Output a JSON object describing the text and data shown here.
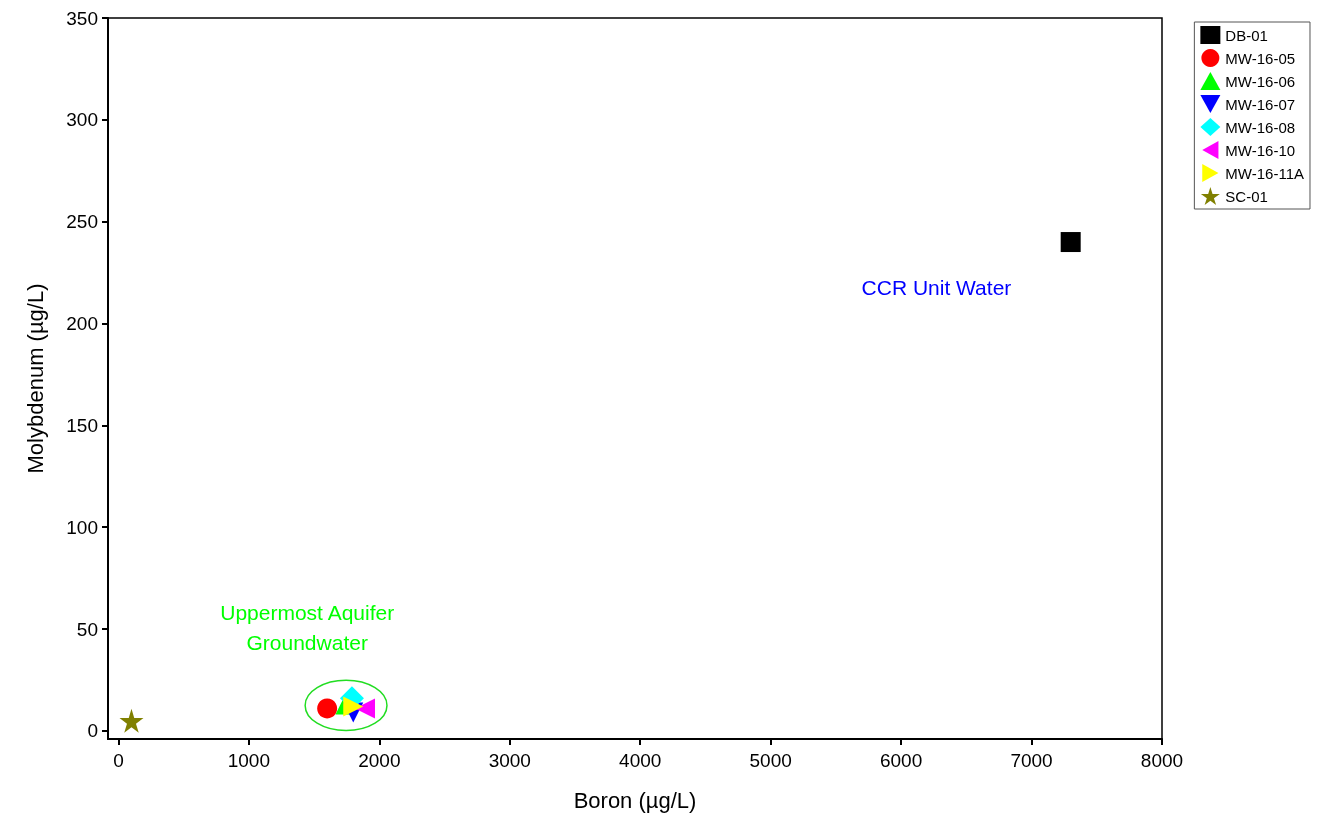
{
  "chart_data": {
    "type": "scatter",
    "xlabel": "Boron (µg/L)",
    "ylabel": "Molybdenum (µg/L)",
    "xlim": [
      -80,
      8000
    ],
    "xticks": [
      0,
      1000,
      2000,
      3000,
      4000,
      5000,
      6000,
      7000,
      8000
    ],
    "ylim": [
      -4,
      350
    ],
    "yticks": [
      0,
      50,
      100,
      150,
      200,
      250,
      300,
      350
    ],
    "grid": false,
    "legend": "top right",
    "annotations": [
      "CCR Unit Water",
      "Uppermost Aquifer\nGroundwater"
    ],
    "series": [
      {
        "name": "DB-01",
        "color": "#000000",
        "marker": "square",
        "x": [
          7300
        ],
        "values": [
          240
        ]
      },
      {
        "name": "MW-16-05",
        "color": "#ff0000",
        "marker": "circle",
        "x": [
          1600
        ],
        "values": [
          11
        ]
      },
      {
        "name": "MW-16-06",
        "color": "#00ff00",
        "marker": "triangle",
        "x": [
          1740
        ],
        "values": [
          13
        ]
      },
      {
        "name": "MW-16-07",
        "color": "#0000ff",
        "marker": "triangle-down",
        "x": [
          1800
        ],
        "values": [
          9
        ]
      },
      {
        "name": "MW-16-08",
        "color": "#00ffff",
        "marker": "diamond",
        "x": [
          1790
        ],
        "values": [
          16
        ]
      },
      {
        "name": "MW-16-10",
        "color": "#ff00ff",
        "marker": "triangle-left",
        "x": [
          1890
        ],
        "values": [
          11
        ]
      },
      {
        "name": "MW-16-11A",
        "color": "#ffff00",
        "marker": "triangle-right",
        "x": [
          1800
        ],
        "values": [
          12
        ]
      },
      {
        "name": "SC-01",
        "color": "#808000",
        "marker": "star",
        "x": [
          100
        ],
        "values": [
          5
        ]
      }
    ]
  }
}
